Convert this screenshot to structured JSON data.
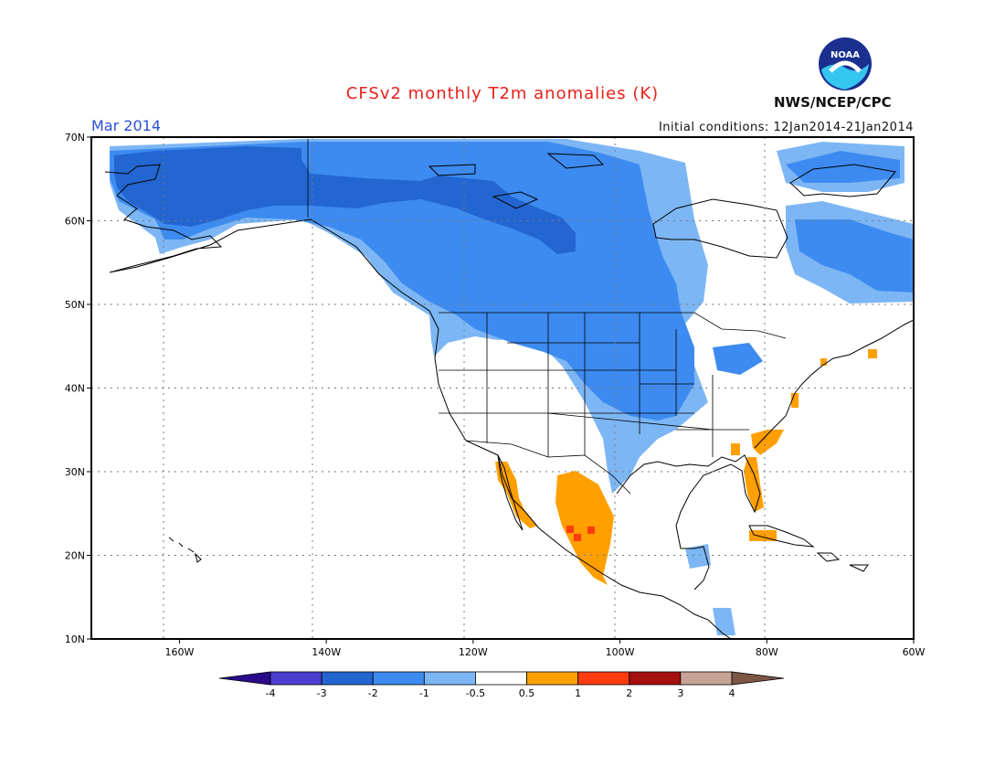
{
  "title": "CFSv2 monthly T2m anomalies (K)",
  "valid_month": "Mar 2014",
  "initial_conditions": "Initial conditions: 12Jan2014-21Jan2014",
  "agency": "NWS/NCEP/CPC",
  "logo_text": "NOAA",
  "colors": {
    "title": "#e8201a",
    "month": "#2a4fd8",
    "frame": "#000000",
    "grid": "#7a7a7a",
    "land_outline": "#000000"
  },
  "map": {
    "lon_labels": [
      "160W",
      "140W",
      "120W",
      "100W",
      "80W",
      "60W"
    ],
    "lat_labels": [
      "70N",
      "60N",
      "50N",
      "40N",
      "30N",
      "20N",
      "10N"
    ],
    "lon_range": [
      -172,
      -60
    ],
    "lat_range": [
      10,
      70
    ]
  },
  "colorbar": {
    "ticks": [
      "-4",
      "-3",
      "-2",
      "-1",
      "-0.5",
      "0.5",
      "1",
      "2",
      "3",
      "4"
    ],
    "colors": [
      "#2a0b8c",
      "#4c3fd0",
      "#2466d1",
      "#3d8bf0",
      "#7db6f4",
      "#ffffff",
      "#ff9f00",
      "#ff3b10",
      "#a50f0f",
      "#c7a395",
      "#7d5646"
    ]
  }
}
